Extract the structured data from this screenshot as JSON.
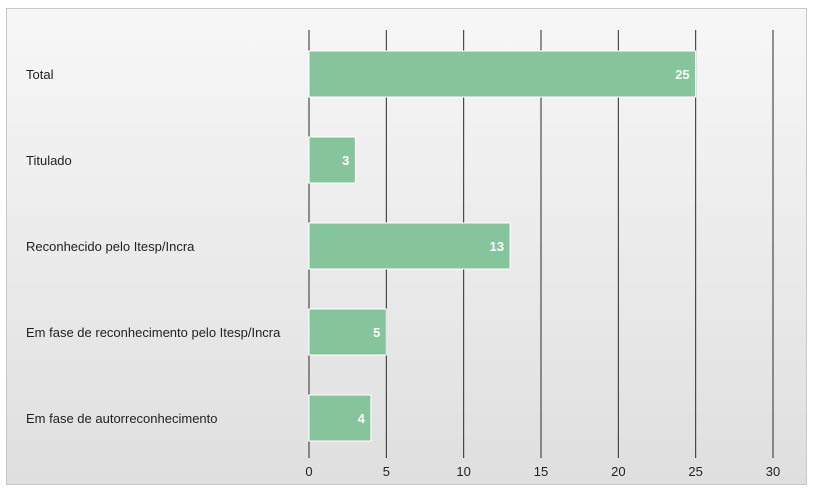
{
  "chart_data": {
    "type": "bar",
    "orientation": "horizontal",
    "categories": [
      "Total",
      "Titulado",
      "Reconhecido pelo Itesp/Incra",
      "Em fase de reconhecimento pelo Itesp/Incra",
      "Em fase de autorreconhecimento"
    ],
    "values": [
      25,
      3,
      13,
      5,
      4
    ],
    "data_labels": [
      "25",
      "3",
      "13",
      "5",
      "4"
    ],
    "title": "",
    "xlabel": "",
    "ylabel": "",
    "xlim": [
      0,
      30
    ],
    "xticks": [
      0,
      5,
      10,
      15,
      20,
      25,
      30
    ],
    "xtick_labels": [
      "0",
      "5",
      "10",
      "15",
      "20",
      "25",
      "30"
    ],
    "grid": "vertical",
    "legend": "none",
    "colors": {
      "bar": "#86c49c",
      "bar_stroke": "#ffffff",
      "grid": "#2a2a2a",
      "data_label": "#ffffff"
    }
  }
}
